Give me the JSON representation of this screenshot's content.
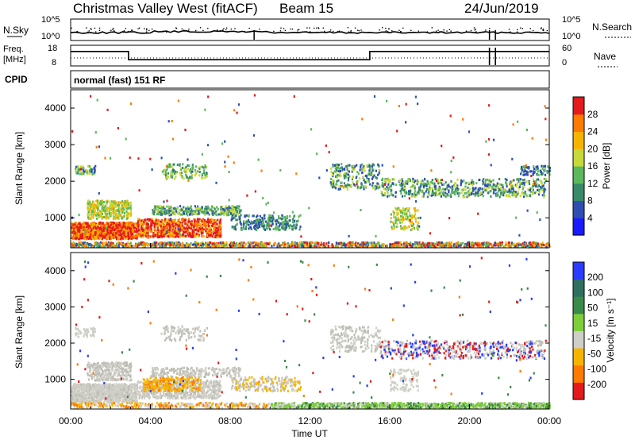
{
  "header": {
    "station": "Christmas Valley West (fitACF)",
    "beam": "Beam 15",
    "date": "24/Jun/2019"
  },
  "left_labels": {
    "nsky": "N.Sky",
    "freq_line1": "Freq.",
    "freq_line2": "[MHz]",
    "cpid": "CPID"
  },
  "right_labels": {
    "nsearch": "N.Search",
    "nave": "Nave"
  },
  "cpid_text": "normal (fast) 151 RF",
  "colors": {
    "power_scale": [
      "#1a1aff",
      "#2f4fb0",
      "#3a8a6a",
      "#5cb85c",
      "#c7d93a",
      "#f6b400",
      "#ff7a00",
      "#e41a1c"
    ],
    "velocity_scale": [
      "#e41a1c",
      "#ff7a00",
      "#f6b400",
      "#cfcfc7",
      "#7dcf3a",
      "#3a8a4a",
      "#2f6f5f",
      "#2a3cff"
    ]
  },
  "chart_data": [
    {
      "type": "line",
      "name": "noise",
      "left_axis_ticks": [
        "10^5",
        "10^0"
      ],
      "right_axis_ticks": [
        "10^5",
        "10^0"
      ]
    },
    {
      "type": "line",
      "name": "frequency-nave",
      "left_axis_ticks": [
        "18",
        "8"
      ],
      "right_axis_ticks": [
        "60",
        "0"
      ],
      "freq_steps": [
        {
          "t": 0.0,
          "mhz": 15
        },
        {
          "t": 2.9,
          "mhz": 11
        },
        {
          "t": 15.0,
          "mhz": 15
        }
      ]
    },
    {
      "type": "heatmap",
      "title": "Power",
      "ylabel": "Slant Range [km]",
      "xlabel": "Time UT",
      "y_ticks": [
        "1000",
        "2000",
        "3000",
        "4000"
      ],
      "colorbar_label": "Power [dB]",
      "colorbar_ticks": [
        "4",
        "8",
        "12",
        "16",
        "20",
        "24",
        "28"
      ],
      "xlim": [
        0,
        24
      ],
      "ylim": [
        180,
        4500
      ]
    },
    {
      "type": "heatmap",
      "title": "Velocity",
      "ylabel": "Slant Range [km]",
      "xlabel": "Time UT",
      "x_ticks": [
        "00:00",
        "04:00",
        "08:00",
        "12:00",
        "16:00",
        "20:00",
        "00:00"
      ],
      "y_ticks": [
        "1000",
        "2000",
        "3000",
        "4000"
      ],
      "colorbar_label": "Velocity [m s⁻¹]",
      "colorbar_ticks": [
        "200",
        "100",
        "50",
        "15",
        "-15",
        "-50",
        "-100",
        "-200"
      ],
      "xlim": [
        0,
        24
      ],
      "ylim": [
        180,
        4500
      ]
    }
  ],
  "x_axis_label": "Time UT"
}
